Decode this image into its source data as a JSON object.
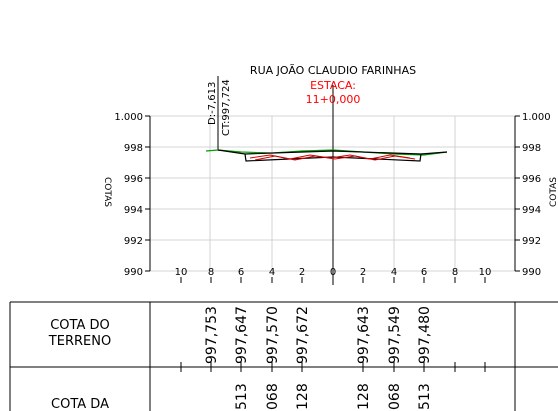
{
  "header": {
    "street": "RUA  JOÃO  CLAUDIO  FARINHAS",
    "estaca_label": "ESTACA:",
    "estaca_value": "11+0,000",
    "offset_label": "D:-7,613",
    "ct_label": "CT:997,724"
  },
  "axes": {
    "y_title_left": "COTAS",
    "y_title_right": "COTAS",
    "y_ticks": [
      "1.000",
      "998",
      "996",
      "994",
      "992",
      "990"
    ],
    "x_ticks": [
      "10",
      "8",
      "6",
      "4",
      "2",
      "0",
      "2",
      "4",
      "6",
      "8",
      "10"
    ]
  },
  "table": {
    "row1_label_line1": "COTA  DO",
    "row1_label_line2": "TERRENO",
    "row2_label_line1": "COTA  DA",
    "terreno_values": [
      "997,753",
      "997,647",
      "997,570",
      "997,672",
      "997,643",
      "997,549",
      "997,480"
    ],
    "greide_values": [
      "513",
      "068",
      "128",
      "128",
      "068",
      "513"
    ]
  },
  "colors": {
    "line": "#000000",
    "grid": "#c8c8c8",
    "annotation_red": "#ff0000",
    "terrain_green": "#00a000",
    "section_red": "#d00000"
  }
}
